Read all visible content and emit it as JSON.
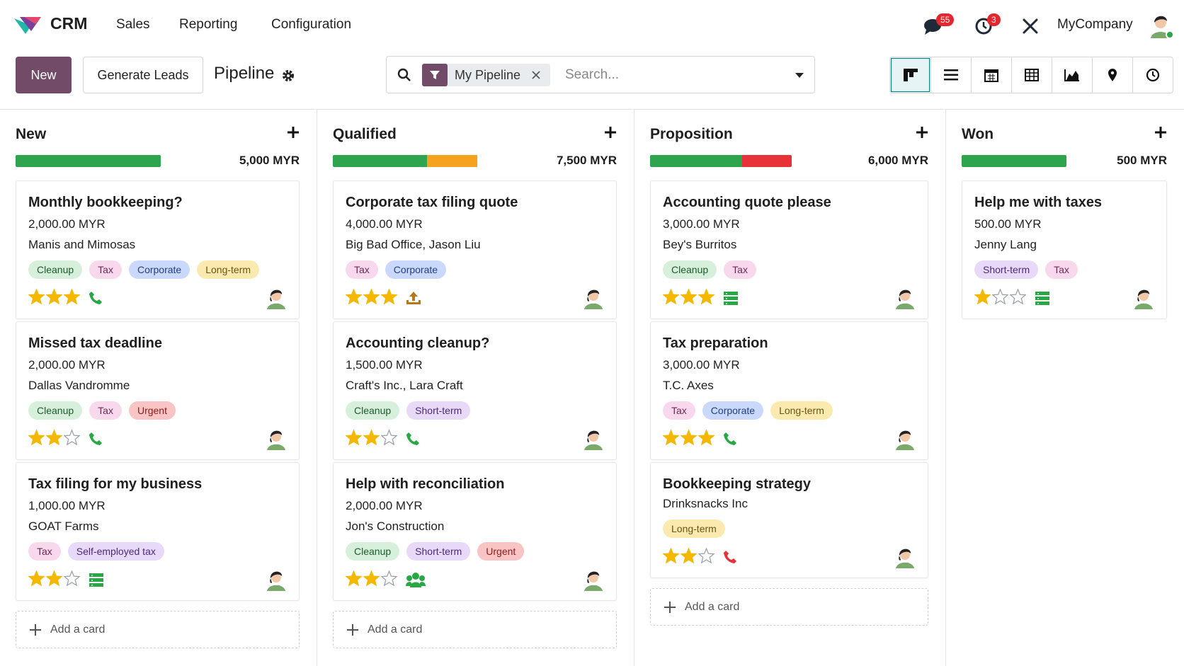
{
  "navbar": {
    "brand": "CRM",
    "menu": [
      "Sales",
      "Reporting",
      "Configuration"
    ],
    "messages_badge": 55,
    "activities_badge": 3,
    "company": "MyCompany"
  },
  "control_panel": {
    "new_button": "New",
    "generate_button": "Generate Leads",
    "title": "Pipeline",
    "filter": "My Pipeline",
    "search_placeholder": "Search..."
  },
  "columns": [
    {
      "name": "New",
      "total": "5,000 MYR",
      "progress": [
        {
          "color": "#2ea44f",
          "value": 100
        }
      ],
      "add_card": "Add a card",
      "cards": [
        {
          "title": "Monthly bookkeeping?",
          "amount": "2,000.00 MYR",
          "customer": "Manis and Mimosas",
          "tags": [
            {
              "label": "Cleanup",
              "style": "green"
            },
            {
              "label": "Tax",
              "style": "pink"
            },
            {
              "label": "Corporate",
              "style": "blue"
            },
            {
              "label": "Long-term",
              "style": "yellow"
            }
          ],
          "priority": 3,
          "activity": {
            "icon": "phone",
            "color": "#28a745"
          }
        },
        {
          "title": "Missed tax deadline",
          "amount": "2,000.00 MYR",
          "customer": "Dallas Vandromme",
          "tags": [
            {
              "label": "Cleanup",
              "style": "green"
            },
            {
              "label": "Tax",
              "style": "pink"
            },
            {
              "label": "Urgent",
              "style": "red"
            }
          ],
          "priority": 2,
          "activity": {
            "icon": "phone",
            "color": "#28a745"
          }
        },
        {
          "title": "Tax filing for my business",
          "amount": "1,000.00 MYR",
          "customer": "GOAT Farms",
          "tags": [
            {
              "label": "Tax",
              "style": "pink"
            },
            {
              "label": "Self-employed tax",
              "style": "purple"
            }
          ],
          "priority": 2,
          "activity": {
            "icon": "list",
            "color": "#28a745"
          }
        }
      ]
    },
    {
      "name": "Qualified",
      "total": "7,500 MYR",
      "progress": [
        {
          "color": "#2ea44f",
          "value": 65
        },
        {
          "color": "#f6a21e",
          "value": 35
        }
      ],
      "add_card": "Add a card",
      "cards": [
        {
          "title": "Corporate tax filing quote",
          "amount": "4,000.00 MYR",
          "customer": "Big Bad Office, Jason Liu",
          "tags": [
            {
              "label": "Tax",
              "style": "pink"
            },
            {
              "label": "Corporate",
              "style": "blue"
            }
          ],
          "priority": 3,
          "activity": {
            "icon": "upload",
            "color": "#b5781a"
          }
        },
        {
          "title": "Accounting cleanup?",
          "amount": "1,500.00 MYR",
          "customer": "Craft's Inc., Lara Craft",
          "tags": [
            {
              "label": "Cleanup",
              "style": "green"
            },
            {
              "label": "Short-term",
              "style": "purple"
            }
          ],
          "priority": 2,
          "activity": {
            "icon": "phone",
            "color": "#28a745"
          }
        },
        {
          "title": "Help with reconciliation",
          "amount": "2,000.00 MYR",
          "customer": "Jon's Construction",
          "tags": [
            {
              "label": "Cleanup",
              "style": "green"
            },
            {
              "label": "Short-term",
              "style": "purple"
            },
            {
              "label": "Urgent",
              "style": "red"
            }
          ],
          "priority": 2,
          "activity": {
            "icon": "group",
            "color": "#28a745"
          }
        }
      ]
    },
    {
      "name": "Proposition",
      "total": "6,000 MYR",
      "progress": [
        {
          "color": "#2ea44f",
          "value": 65
        },
        {
          "color": "#e8323a",
          "value": 35
        }
      ],
      "add_card": "Add a card",
      "cards": [
        {
          "title": "Accounting quote please",
          "amount": "3,000.00 MYR",
          "customer": "Bey's Burritos",
          "tags": [
            {
              "label": "Cleanup",
              "style": "green"
            },
            {
              "label": "Tax",
              "style": "pink"
            }
          ],
          "priority": 3,
          "activity": {
            "icon": "list",
            "color": "#28a745"
          }
        },
        {
          "title": "Tax preparation",
          "amount": "3,000.00 MYR",
          "customer": "T.C. Axes",
          "tags": [
            {
              "label": "Tax",
              "style": "pink"
            },
            {
              "label": "Corporate",
              "style": "blue"
            },
            {
              "label": "Long-term",
              "style": "yellow"
            }
          ],
          "priority": 3,
          "activity": {
            "icon": "phone",
            "color": "#28a745"
          }
        },
        {
          "title": "Bookkeeping strategy",
          "customer": "Drinksnacks Inc",
          "tags": [
            {
              "label": "Long-term",
              "style": "yellow"
            }
          ],
          "priority": 2,
          "activity": {
            "icon": "phone",
            "color": "#e8323a"
          }
        }
      ]
    },
    {
      "name": "Won",
      "total": "500 MYR",
      "progress": [
        {
          "color": "#2ea44f",
          "value": 100
        }
      ],
      "cards": [
        {
          "title": "Help me with taxes",
          "amount": "500.00 MYR",
          "customer": "Jenny Lang",
          "tags": [
            {
              "label": "Short-term",
              "style": "purple"
            },
            {
              "label": "Tax",
              "style": "pink"
            }
          ],
          "priority": 1,
          "activity": {
            "icon": "list",
            "color": "#28a745"
          }
        }
      ]
    }
  ]
}
